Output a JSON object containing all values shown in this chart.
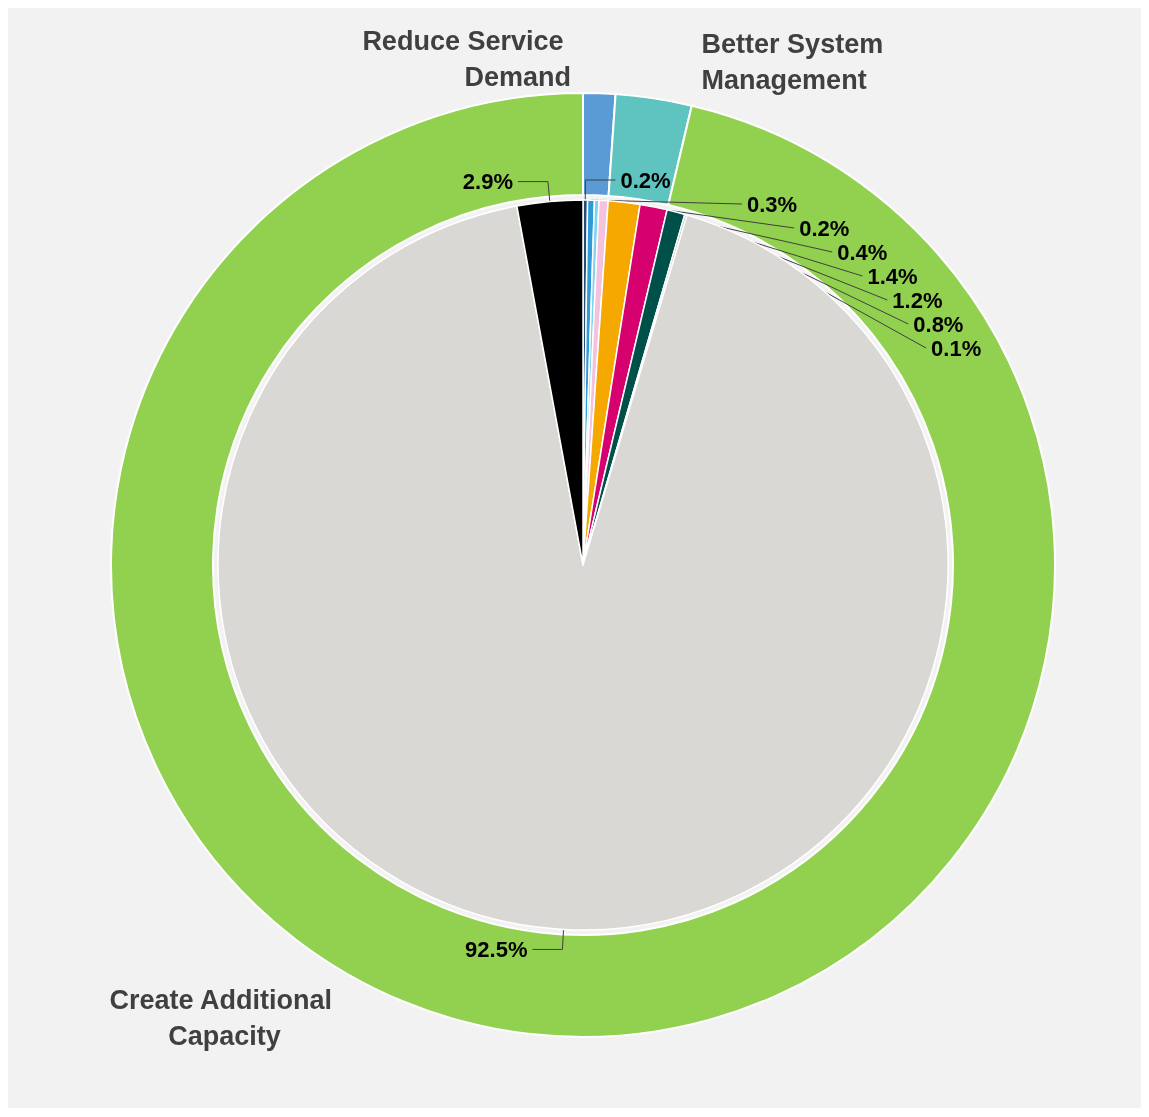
{
  "chart_data": [
    {
      "type": "donut",
      "legend": false,
      "categories": [
        "Reduce Service Demand",
        "Better System Management",
        "Create Additional Capacity"
      ],
      "values": [
        1.1,
        2.6,
        96.3
      ],
      "colors": [
        "#5b9bd5",
        "#5fc4bf",
        "#92d050"
      ]
    },
    {
      "type": "pie",
      "legend": false,
      "categories": [
        null,
        null,
        null,
        null,
        null,
        null,
        null,
        null,
        null,
        null
      ],
      "values": [
        0.2,
        0.3,
        0.2,
        0.4,
        1.4,
        1.2,
        0.8,
        0.1,
        92.5,
        2.9
      ],
      "value_labels": [
        "0.2%",
        "0.3%",
        "0.2%",
        "0.4%",
        "1.4%",
        "1.2%",
        "0.8%",
        "0.1%",
        "92.5%",
        "2.9%"
      ],
      "colors": [
        "#1f4e79",
        "#2e9bd6",
        "#7fd3f0",
        "#f4c2dc",
        "#f5a800",
        "#d6006f",
        "#00504a",
        "#b7b7b7",
        "#dad8d4",
        "#000000"
      ]
    }
  ]
}
